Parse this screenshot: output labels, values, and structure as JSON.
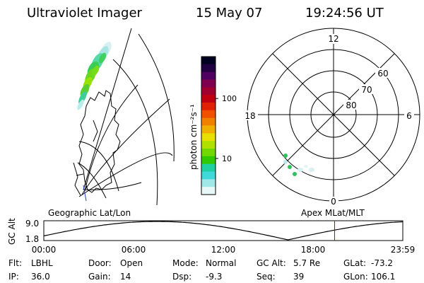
{
  "header": {
    "title": "Ultraviolet Imager",
    "date": "15 May 07",
    "time": "19:24:56 UT"
  },
  "colors": {
    "background": "#ffffff",
    "ink": "#000000",
    "time_marker": "#cc0000",
    "aurora": "#33cc44"
  },
  "left_panel": {
    "label": "Geographic Lat/Lon"
  },
  "colorbar": {
    "unit_label": "photon cm⁻²s⁻¹",
    "scale": "log",
    "tick_labels": [
      "100",
      "10"
    ],
    "ticks": [
      100,
      10
    ],
    "range": [
      2.5,
      500
    ],
    "colors": [
      "#000020",
      "#200040",
      "#500060",
      "#800050",
      "#a00030",
      "#c00010",
      "#e02000",
      "#f05000",
      "#f08000",
      "#f0b000",
      "#e8e000",
      "#b0e000",
      "#70d800",
      "#30c800",
      "#20d0a0",
      "#40d8d8",
      "#a0e8e8",
      "#e8f8f8"
    ]
  },
  "polar_panel": {
    "label": "Apex  MLat/MLT",
    "mlt_labels": {
      "top": "12",
      "left": "18",
      "right": "6",
      "bottom": "0"
    },
    "lat_labels": [
      "60",
      "70",
      "80"
    ]
  },
  "orbit": {
    "axis_label": "GC Alt",
    "y_tick_labels": [
      "9.0",
      "1.8"
    ],
    "x_tick_labels": [
      "00:00",
      "06:00",
      "12:00",
      "18:00",
      "23:59"
    ],
    "current_time_fraction": 0.81
  },
  "info": {
    "rows": [
      [
        {
          "key": "Flt:",
          "value": "LBHL"
        },
        {
          "key": "Door:",
          "value": "Open"
        },
        {
          "key": "Mode:",
          "value": "Normal"
        },
        {
          "key": "GC Alt:",
          "value": "5.7 Re"
        },
        {
          "key": "GLat:",
          "value": "-73.2"
        }
      ],
      [
        {
          "key": "IP:",
          "value": "36.0"
        },
        {
          "key": "Gain:",
          "value": "14"
        },
        {
          "key": "Dsp:",
          "value": "-9.3"
        },
        {
          "key": "Seq:",
          "value": "39"
        },
        {
          "key": "GLon:",
          "value": "106.1"
        }
      ]
    ]
  }
}
